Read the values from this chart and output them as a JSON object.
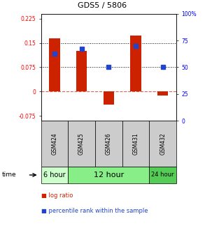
{
  "title": "GDS5 / 5806",
  "samples": [
    "GSM424",
    "GSM425",
    "GSM426",
    "GSM431",
    "GSM432"
  ],
  "log_ratio": [
    0.165,
    0.125,
    -0.04,
    0.172,
    -0.012
  ],
  "percentile_rank_pct": [
    62.5,
    67.5,
    50.0,
    70.0,
    50.0
  ],
  "ylim_left": [
    -0.09,
    0.24
  ],
  "ylim_right": [
    0,
    100
  ],
  "yticks_left": [
    -0.075,
    0,
    0.075,
    0.15,
    0.225
  ],
  "yticks_right": [
    0,
    25,
    50,
    75,
    100
  ],
  "ytick_labels_left": [
    "-0.075",
    "0",
    "0.075",
    "0.15",
    "0.225"
  ],
  "ytick_labels_right": [
    "0",
    "25",
    "50",
    "75",
    "100%"
  ],
  "dotted_lines": [
    0.075,
    0.15
  ],
  "bar_color": "#cc2200",
  "dot_color": "#2244cc",
  "bar_width": 0.4,
  "time_groups": [
    {
      "label": "6 hour",
      "start": 0,
      "end": 1,
      "color": "#ccffcc",
      "fontsize": 7
    },
    {
      "label": "12 hour",
      "start": 1,
      "end": 4,
      "color": "#88ee88",
      "fontsize": 8
    },
    {
      "label": "24 hour",
      "start": 4,
      "end": 5,
      "color": "#55cc55",
      "fontsize": 6
    }
  ],
  "legend_items": [
    {
      "label": "log ratio",
      "color": "#cc2200"
    },
    {
      "label": "percentile rank within the sample",
      "color": "#2244cc"
    }
  ]
}
